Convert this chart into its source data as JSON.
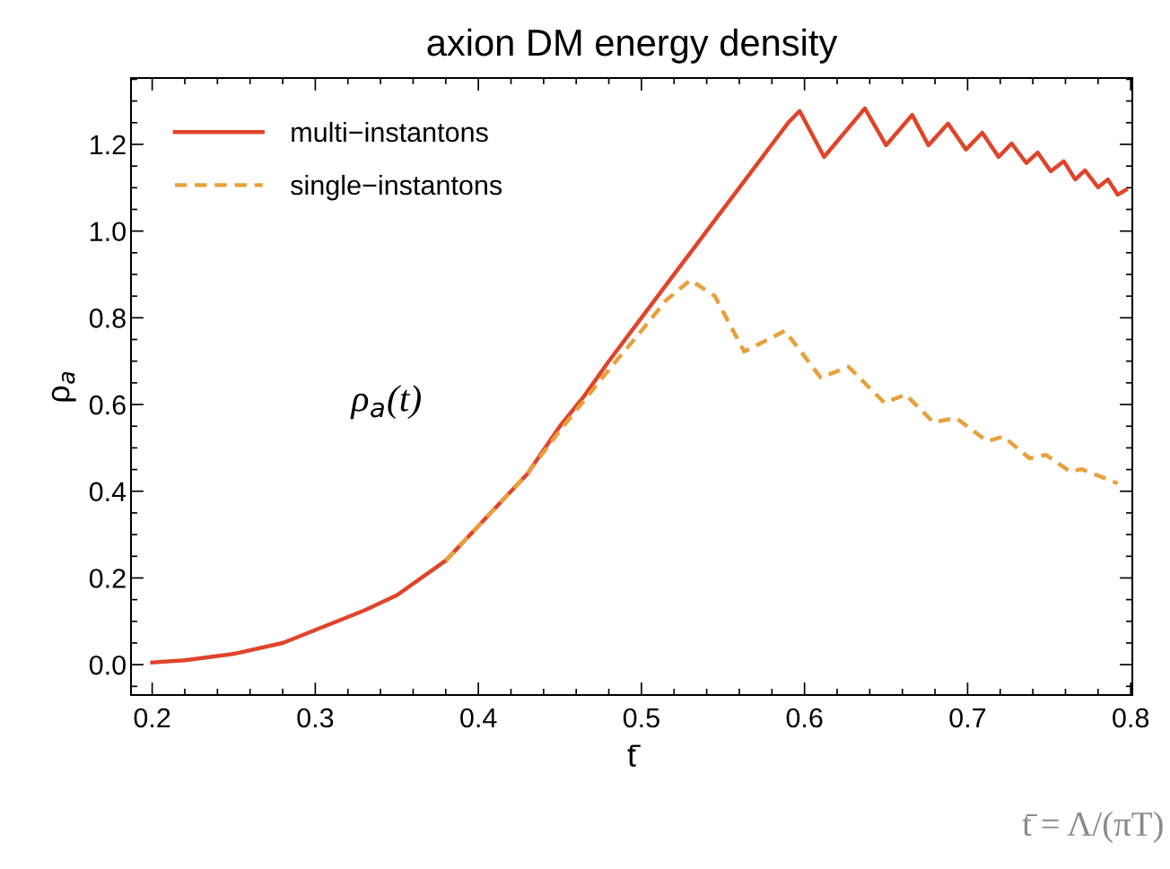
{
  "chart_data": {
    "type": "line",
    "title": "axion DM energy density",
    "xlabel": "t̄",
    "ylabel": "ρ$_{a}$",
    "annotations": [
      "ρ$_{a}$(t)",
      "t̄ = Λ/(πT)"
    ],
    "xlim": [
      0.187,
      0.801
    ],
    "ylim": [
      -0.07,
      1.353
    ],
    "xticks": [
      0.2,
      0.3,
      0.4,
      0.5,
      0.6,
      0.7,
      0.8
    ],
    "yticks": [
      {
        "value": 0.0,
        "label": "0.0"
      },
      0.2,
      0.4,
      0.6,
      0.8,
      {
        "value": 1.0,
        "label": "1.0"
      },
      1.2
    ],
    "grid": false,
    "legend": "top left",
    "series": [
      {
        "name": "multi−instantons",
        "color": "#e0442a",
        "line_style": "solid",
        "x": [
          0.2,
          0.22,
          0.25,
          0.28,
          0.3,
          0.33,
          0.35,
          0.38,
          0.4,
          0.43,
          0.45,
          0.465,
          0.48,
          0.5,
          0.53,
          0.56,
          0.58,
          0.59,
          0.597,
          0.612,
          0.637,
          0.65,
          0.666,
          0.676,
          0.688,
          0.699,
          0.709,
          0.719,
          0.727,
          0.736,
          0.743,
          0.751,
          0.759,
          0.766,
          0.772,
          0.78,
          0.786,
          0.792,
          0.797
        ],
        "values": [
          0.005,
          0.01,
          0.025,
          0.05,
          0.08,
          0.125,
          0.16,
          0.24,
          0.32,
          0.44,
          0.55,
          0.62,
          0.7,
          0.8,
          0.95,
          1.1,
          1.2,
          1.25,
          1.277,
          1.171,
          1.283,
          1.198,
          1.268,
          1.198,
          1.248,
          1.188,
          1.227,
          1.171,
          1.202,
          1.157,
          1.181,
          1.138,
          1.161,
          1.119,
          1.14,
          1.101,
          1.119,
          1.084,
          1.095
        ]
      },
      {
        "name": "single−instantons",
        "color": "#e8a03a",
        "line_style": "dashed",
        "x": [
          0.38,
          0.4,
          0.43,
          0.45,
          0.465,
          0.48,
          0.5,
          0.515,
          0.53,
          0.545,
          0.563,
          0.588,
          0.61,
          0.627,
          0.649,
          0.662,
          0.679,
          0.693,
          0.712,
          0.722,
          0.738,
          0.748,
          0.763,
          0.77,
          0.792
        ],
        "values": [
          0.24,
          0.32,
          0.44,
          0.54,
          0.61,
          0.68,
          0.77,
          0.84,
          0.887,
          0.85,
          0.722,
          0.77,
          0.662,
          0.687,
          0.604,
          0.623,
          0.559,
          0.569,
          0.515,
          0.526,
          0.476,
          0.484,
          0.445,
          0.451,
          0.418
        ]
      }
    ]
  }
}
